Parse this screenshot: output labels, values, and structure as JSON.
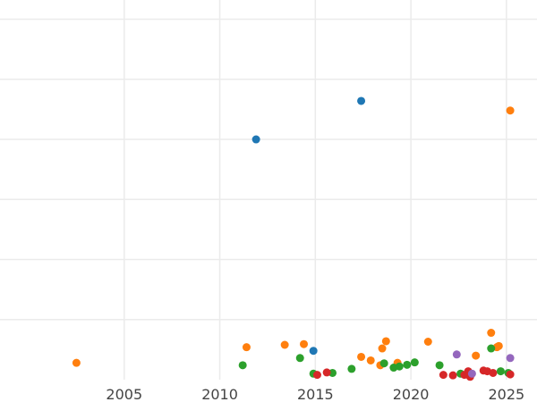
{
  "chart_data": {
    "type": "scatter",
    "grid": true,
    "xlim": [
      1998.5,
      2026.6
    ],
    "ylim": [
      0,
      1580
    ],
    "x_ticks": [
      2005,
      2010,
      2015,
      2020,
      2025
    ],
    "x_tick_labels": [
      "2005",
      "2010",
      "2015",
      "2020",
      "2025"
    ],
    "y_ticks": [
      250,
      500,
      750,
      1000,
      1250,
      1500
    ],
    "series": [
      {
        "color": "#1f77b4",
        "points": [
          {
            "x": 2011.9,
            "y": 1000
          },
          {
            "x": 2017.4,
            "y": 1160
          },
          {
            "x": 2014.9,
            "y": 120
          }
        ]
      },
      {
        "color": "#ff7f0e",
        "points": [
          {
            "x": 2002.5,
            "y": 70
          },
          {
            "x": 2011.4,
            "y": 135
          },
          {
            "x": 2013.4,
            "y": 145
          },
          {
            "x": 2014.4,
            "y": 148
          },
          {
            "x": 2017.4,
            "y": 95
          },
          {
            "x": 2017.9,
            "y": 80
          },
          {
            "x": 2018.4,
            "y": 60
          },
          {
            "x": 2018.5,
            "y": 130
          },
          {
            "x": 2018.7,
            "y": 160
          },
          {
            "x": 2019.3,
            "y": 70
          },
          {
            "x": 2020.9,
            "y": 158
          },
          {
            "x": 2023.4,
            "y": 100
          },
          {
            "x": 2024.2,
            "y": 195
          },
          {
            "x": 2024.5,
            "y": 135
          },
          {
            "x": 2024.6,
            "y": 140
          },
          {
            "x": 2025.2,
            "y": 1120
          }
        ]
      },
      {
        "color": "#2ca02c",
        "points": [
          {
            "x": 2011.2,
            "y": 60
          },
          {
            "x": 2014.2,
            "y": 90
          },
          {
            "x": 2014.9,
            "y": 25
          },
          {
            "x": 2015.9,
            "y": 28
          },
          {
            "x": 2016.9,
            "y": 45
          },
          {
            "x": 2018.6,
            "y": 68
          },
          {
            "x": 2019.1,
            "y": 50
          },
          {
            "x": 2019.4,
            "y": 55
          },
          {
            "x": 2019.8,
            "y": 62
          },
          {
            "x": 2020.2,
            "y": 72
          },
          {
            "x": 2021.5,
            "y": 60
          },
          {
            "x": 2022.6,
            "y": 25
          },
          {
            "x": 2024.2,
            "y": 130
          },
          {
            "x": 2024.7,
            "y": 35
          },
          {
            "x": 2025.1,
            "y": 28
          }
        ]
      },
      {
        "color": "#d62728",
        "points": [
          {
            "x": 2015.1,
            "y": 20
          },
          {
            "x": 2015.6,
            "y": 30
          },
          {
            "x": 2021.7,
            "y": 20
          },
          {
            "x": 2022.2,
            "y": 18
          },
          {
            "x": 2022.8,
            "y": 20
          },
          {
            "x": 2023.0,
            "y": 35
          },
          {
            "x": 2023.1,
            "y": 12
          },
          {
            "x": 2023.8,
            "y": 38
          },
          {
            "x": 2024.0,
            "y": 35
          },
          {
            "x": 2024.3,
            "y": 28
          },
          {
            "x": 2025.2,
            "y": 22
          }
        ]
      },
      {
        "color": "#9467bd",
        "points": [
          {
            "x": 2022.4,
            "y": 105
          },
          {
            "x": 2023.2,
            "y": 25
          },
          {
            "x": 2025.2,
            "y": 90
          }
        ]
      }
    ]
  }
}
